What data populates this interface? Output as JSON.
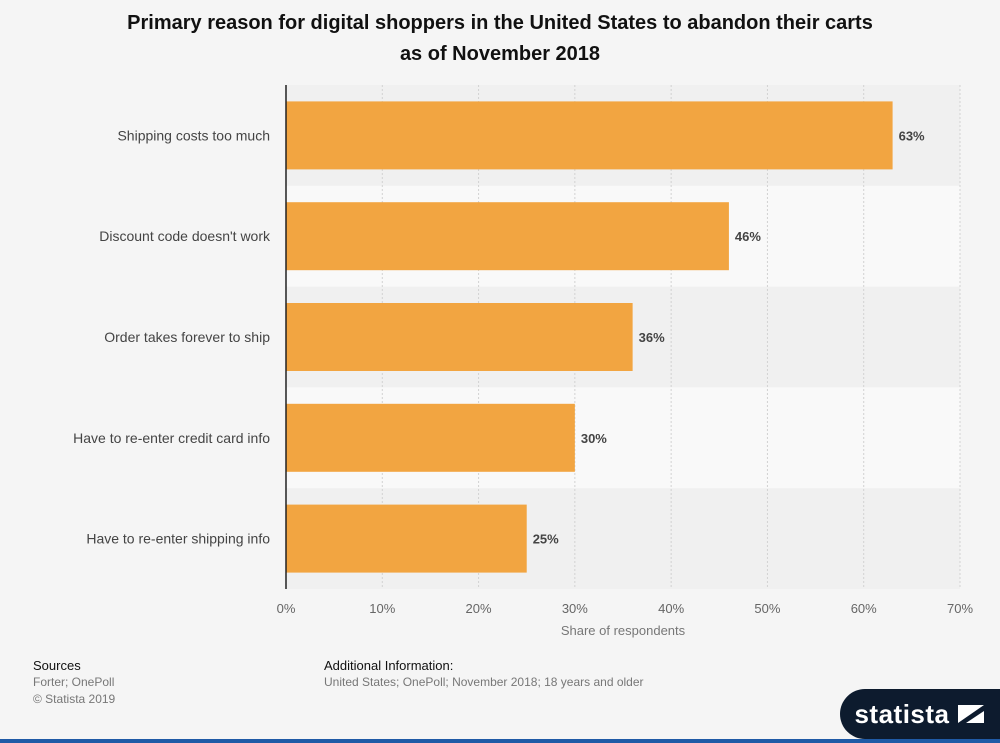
{
  "chart_data": {
    "type": "bar",
    "orientation": "horizontal",
    "title": "Primary reason for digital shoppers in the United States to abandon their carts as of November 2018",
    "categories": [
      "Shipping costs too much",
      "Discount code doesn't work",
      "Order takes forever to ship",
      "Have to re-enter credit card info",
      "Have to re-enter shipping info"
    ],
    "values": [
      63,
      46,
      36,
      30,
      25
    ],
    "value_labels": [
      "63%",
      "46%",
      "36%",
      "30%",
      "25%"
    ],
    "xlabel": "Share of respondents",
    "ylabel": "",
    "xlim": [
      0,
      70
    ],
    "xticks": [
      0,
      10,
      20,
      30,
      40,
      50,
      60,
      70
    ],
    "xtick_labels": [
      "0%",
      "10%",
      "20%",
      "30%",
      "40%",
      "50%",
      "60%",
      "70%"
    ],
    "grid": true,
    "bar_color": "#f2a541"
  },
  "title_line1": "Primary reason for digital shoppers in the United States to abandon their carts",
  "title_line2": "as of November 2018",
  "footer": {
    "sources_heading": "Sources",
    "sources_line1": "Forter; OnePoll",
    "sources_line2": "© Statista 2019",
    "additional_heading": "Additional Information:",
    "additional_text": "United States; OnePoll; November 2018; 18 years and older"
  },
  "logo": {
    "text": "statista",
    "icon": "statista-flag-icon"
  }
}
